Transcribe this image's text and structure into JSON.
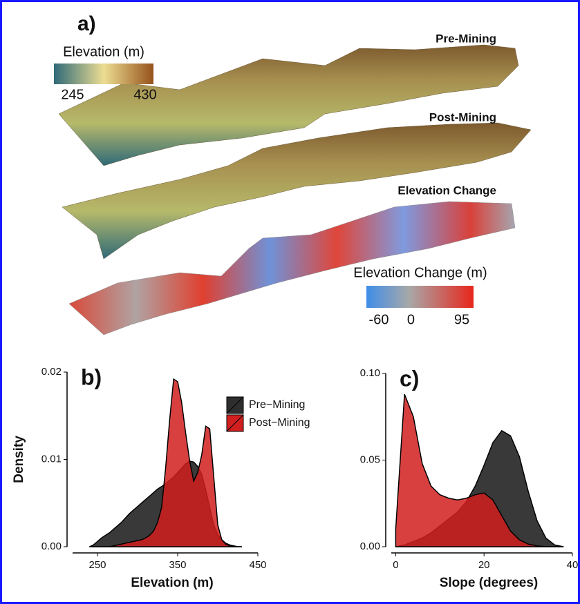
{
  "panel_a": {
    "label": "a)",
    "elevation_legend": {
      "title": "Elevation (m)",
      "lim": [
        245,
        430
      ],
      "ticks": [
        245,
        430
      ]
    },
    "surface_labels": [
      "Pre-Mining",
      "Post-Mining",
      "Elevation Change"
    ],
    "change_legend": {
      "title": "Elevation Change (m)",
      "lim": [
        -60,
        95
      ],
      "ticks": [
        -60,
        0,
        95
      ]
    }
  },
  "chart_data": [
    {
      "type": "area",
      "label": "b)",
      "xlabel": "Elevation (m)",
      "ylabel": "Density",
      "legend": "right",
      "x": [
        240,
        245,
        250,
        255,
        260,
        265,
        270,
        275,
        280,
        285,
        290,
        295,
        300,
        305,
        310,
        315,
        320,
        325,
        330,
        335,
        340,
        345,
        350,
        355,
        360,
        365,
        370,
        375,
        380,
        385,
        390,
        395,
        400,
        405,
        410,
        415,
        420,
        425,
        430
      ],
      "series": [
        {
          "name": "Pre−Mining",
          "color": "#2e2e2e",
          "values": [
            0,
            0.0002,
            0.0006,
            0.001,
            0.0013,
            0.0016,
            0.002,
            0.0024,
            0.0028,
            0.0033,
            0.0038,
            0.0042,
            0.0046,
            0.005,
            0.0054,
            0.0058,
            0.0062,
            0.0066,
            0.0069,
            0.0072,
            0.0076,
            0.008,
            0.0085,
            0.009,
            0.0095,
            0.0098,
            0.0097,
            0.0092,
            0.0083,
            0.0065,
            0.0045,
            0.0025,
            0.0014,
            0.0008,
            0.0004,
            0.0002,
            0.0001,
            0,
            0
          ]
        },
        {
          "name": "Post−Mining",
          "color": "#d11f1f",
          "values": [
            0,
            0,
            0,
            0,
            0,
            0,
            0.0001,
            0.0002,
            0.0003,
            0.0004,
            0.0005,
            0.0006,
            0.0007,
            0.0008,
            0.001,
            0.0013,
            0.0018,
            0.0028,
            0.0045,
            0.009,
            0.0145,
            0.0192,
            0.0189,
            0.0165,
            0.013,
            0.0098,
            0.0075,
            0.0085,
            0.0105,
            0.0138,
            0.0135,
            0.008,
            0.0025,
            0.0008,
            0.0003,
            0.0001,
            0,
            0,
            0
          ]
        }
      ],
      "xlim": [
        219,
        450
      ],
      "xticks": [
        250,
        350,
        450
      ],
      "ylim": [
        0,
        0.02
      ],
      "yticks": [
        {
          "value": 0,
          "label": "0.00"
        },
        {
          "value": 0.01,
          "label": "0.01"
        },
        {
          "value": 0.02,
          "label": "0.02"
        }
      ]
    },
    {
      "type": "area",
      "label": "c)",
      "xlabel": "Slope (degrees)",
      "x": [
        0,
        2,
        4,
        6,
        8,
        10,
        12,
        14,
        16,
        18,
        20,
        22,
        24,
        26,
        28,
        30,
        32,
        34,
        36,
        38
      ],
      "series": [
        {
          "name": "Pre−Mining",
          "color": "#2e2e2e",
          "values": [
            0,
            0.001,
            0.003,
            0.005,
            0.008,
            0.012,
            0.016,
            0.02,
            0.026,
            0.035,
            0.047,
            0.06,
            0.067,
            0.064,
            0.052,
            0.032,
            0.015,
            0.005,
            0.001,
            0
          ]
        },
        {
          "name": "Post−Mining",
          "color": "#d11f1f",
          "values": [
            0.01,
            0.088,
            0.075,
            0.048,
            0.035,
            0.03,
            0.028,
            0.027,
            0.028,
            0.03,
            0.031,
            0.027,
            0.018,
            0.009,
            0.004,
            0.0015,
            0.0005,
            0,
            0,
            0
          ]
        }
      ],
      "xlim": [
        -1,
        40
      ],
      "xticks": [
        0,
        20,
        40
      ],
      "ylim": [
        0,
        0.1
      ],
      "yticks": [
        {
          "value": 0,
          "label": "0.00"
        },
        {
          "value": 0.05,
          "label": "0.05"
        },
        {
          "value": 0.1,
          "label": "0.10"
        }
      ]
    }
  ]
}
